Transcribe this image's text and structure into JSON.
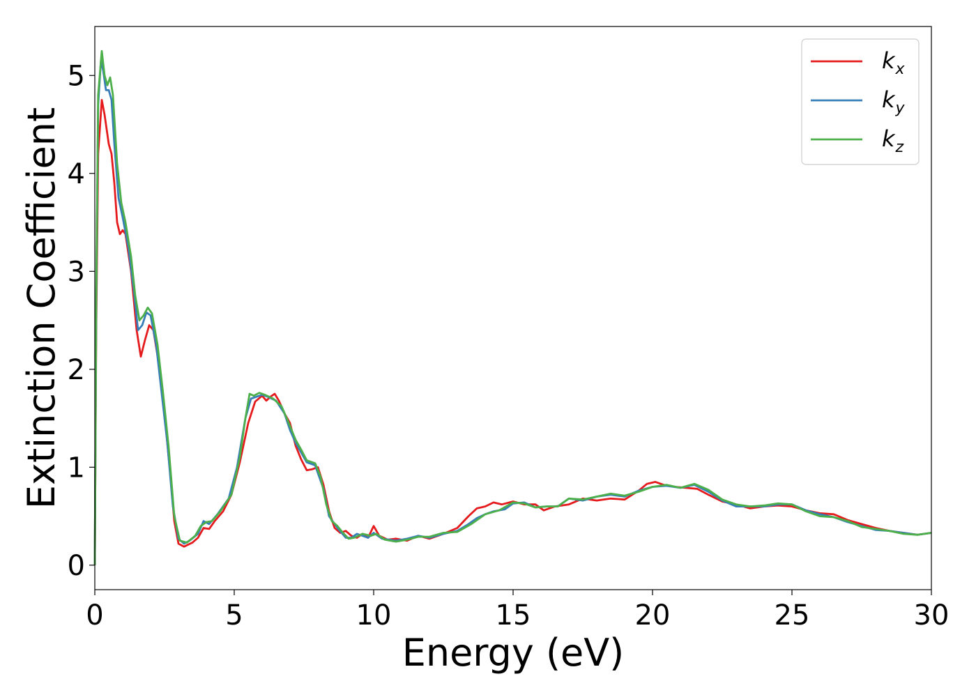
{
  "chart_data": {
    "type": "line",
    "title": "",
    "xlabel": "Energy (eV)",
    "ylabel": "Extinction Coefficient",
    "xlim": [
      0,
      30
    ],
    "ylim": [
      -0.25,
      5.5
    ],
    "xticks": [
      0,
      5,
      10,
      15,
      20,
      25,
      30
    ],
    "yticks": [
      0,
      1,
      2,
      3,
      4,
      5
    ],
    "grid": false,
    "legend_position": "top-right",
    "series": [
      {
        "name": "k_x",
        "label_main": "k",
        "label_sub": "x",
        "color": "#e41a1c",
        "points": [
          [
            0,
            0
          ],
          [
            0.05,
            2.4
          ],
          [
            0.12,
            4.2
          ],
          [
            0.25,
            4.75
          ],
          [
            0.35,
            4.6
          ],
          [
            0.5,
            4.3
          ],
          [
            0.6,
            4.2
          ],
          [
            0.7,
            3.9
          ],
          [
            0.8,
            3.5
          ],
          [
            0.9,
            3.38
          ],
          [
            1.0,
            3.42
          ],
          [
            1.1,
            3.38
          ],
          [
            1.3,
            3.0
          ],
          [
            1.5,
            2.4
          ],
          [
            1.65,
            2.13
          ],
          [
            1.8,
            2.3
          ],
          [
            1.95,
            2.45
          ],
          [
            2.1,
            2.4
          ],
          [
            2.3,
            2.05
          ],
          [
            2.5,
            1.55
          ],
          [
            2.7,
            0.95
          ],
          [
            2.85,
            0.45
          ],
          [
            3.0,
            0.22
          ],
          [
            3.2,
            0.19
          ],
          [
            3.5,
            0.23
          ],
          [
            3.7,
            0.28
          ],
          [
            3.9,
            0.38
          ],
          [
            4.1,
            0.37
          ],
          [
            4.3,
            0.45
          ],
          [
            4.6,
            0.55
          ],
          [
            4.9,
            0.72
          ],
          [
            5.2,
            1.05
          ],
          [
            5.5,
            1.45
          ],
          [
            5.75,
            1.67
          ],
          [
            6.0,
            1.73
          ],
          [
            6.15,
            1.68
          ],
          [
            6.3,
            1.72
          ],
          [
            6.45,
            1.75
          ],
          [
            6.6,
            1.68
          ],
          [
            6.8,
            1.55
          ],
          [
            7.0,
            1.45
          ],
          [
            7.2,
            1.22
          ],
          [
            7.4,
            1.08
          ],
          [
            7.6,
            0.97
          ],
          [
            7.8,
            0.98
          ],
          [
            8.0,
            1.0
          ],
          [
            8.2,
            0.82
          ],
          [
            8.4,
            0.55
          ],
          [
            8.6,
            0.38
          ],
          [
            8.8,
            0.33
          ],
          [
            9.0,
            0.35
          ],
          [
            9.2,
            0.3
          ],
          [
            9.4,
            0.28
          ],
          [
            9.6,
            0.32
          ],
          [
            9.8,
            0.28
          ],
          [
            10.0,
            0.4
          ],
          [
            10.2,
            0.3
          ],
          [
            10.5,
            0.26
          ],
          [
            10.8,
            0.27
          ],
          [
            11.2,
            0.25
          ],
          [
            11.6,
            0.3
          ],
          [
            12.0,
            0.27
          ],
          [
            12.5,
            0.32
          ],
          [
            13.0,
            0.38
          ],
          [
            13.4,
            0.5
          ],
          [
            13.7,
            0.58
          ],
          [
            14.0,
            0.6
          ],
          [
            14.3,
            0.64
          ],
          [
            14.6,
            0.62
          ],
          [
            15.0,
            0.65
          ],
          [
            15.4,
            0.62
          ],
          [
            15.8,
            0.62
          ],
          [
            16.1,
            0.56
          ],
          [
            16.5,
            0.6
          ],
          [
            17.0,
            0.62
          ],
          [
            17.5,
            0.68
          ],
          [
            18.0,
            0.66
          ],
          [
            18.5,
            0.68
          ],
          [
            19.0,
            0.67
          ],
          [
            19.5,
            0.76
          ],
          [
            19.8,
            0.83
          ],
          [
            20.1,
            0.85
          ],
          [
            20.4,
            0.82
          ],
          [
            20.8,
            0.8
          ],
          [
            21.2,
            0.79
          ],
          [
            21.6,
            0.78
          ],
          [
            22.0,
            0.72
          ],
          [
            22.5,
            0.65
          ],
          [
            23.0,
            0.62
          ],
          [
            23.5,
            0.58
          ],
          [
            24.0,
            0.6
          ],
          [
            24.5,
            0.61
          ],
          [
            25.0,
            0.6
          ],
          [
            25.5,
            0.56
          ],
          [
            26.0,
            0.53
          ],
          [
            26.5,
            0.52
          ],
          [
            27.0,
            0.46
          ],
          [
            27.5,
            0.42
          ],
          [
            28.0,
            0.38
          ],
          [
            28.5,
            0.35
          ],
          [
            29.0,
            0.33
          ],
          [
            29.5,
            0.31
          ],
          [
            30.0,
            0.33
          ]
        ]
      },
      {
        "name": "k_y",
        "label_main": "k",
        "label_sub": "y",
        "color": "#377eb8",
        "points": [
          [
            0,
            0
          ],
          [
            0.05,
            2.6
          ],
          [
            0.12,
            4.7
          ],
          [
            0.22,
            5.15
          ],
          [
            0.3,
            5.05
          ],
          [
            0.4,
            4.85
          ],
          [
            0.5,
            4.85
          ],
          [
            0.6,
            4.75
          ],
          [
            0.7,
            4.3
          ],
          [
            0.85,
            3.75
          ],
          [
            1.0,
            3.55
          ],
          [
            1.2,
            3.25
          ],
          [
            1.4,
            2.8
          ],
          [
            1.55,
            2.4
          ],
          [
            1.7,
            2.45
          ],
          [
            1.85,
            2.58
          ],
          [
            2.0,
            2.55
          ],
          [
            2.2,
            2.25
          ],
          [
            2.4,
            1.75
          ],
          [
            2.6,
            1.25
          ],
          [
            2.8,
            0.6
          ],
          [
            3.0,
            0.27
          ],
          [
            3.2,
            0.22
          ],
          [
            3.4,
            0.25
          ],
          [
            3.7,
            0.32
          ],
          [
            3.9,
            0.45
          ],
          [
            4.1,
            0.42
          ],
          [
            4.4,
            0.52
          ],
          [
            4.8,
            0.68
          ],
          [
            5.1,
            1.0
          ],
          [
            5.4,
            1.5
          ],
          [
            5.6,
            1.7
          ],
          [
            5.8,
            1.72
          ],
          [
            6.0,
            1.74
          ],
          [
            6.2,
            1.72
          ],
          [
            6.5,
            1.68
          ],
          [
            6.8,
            1.55
          ],
          [
            7.0,
            1.38
          ],
          [
            7.2,
            1.25
          ],
          [
            7.4,
            1.15
          ],
          [
            7.6,
            1.05
          ],
          [
            7.9,
            1.02
          ],
          [
            8.2,
            0.78
          ],
          [
            8.4,
            0.5
          ],
          [
            8.7,
            0.38
          ],
          [
            9.0,
            0.28
          ],
          [
            9.2,
            0.28
          ],
          [
            9.4,
            0.32
          ],
          [
            9.6,
            0.3
          ],
          [
            9.8,
            0.28
          ],
          [
            10.0,
            0.33
          ],
          [
            10.3,
            0.27
          ],
          [
            10.8,
            0.25
          ],
          [
            11.2,
            0.27
          ],
          [
            11.6,
            0.3
          ],
          [
            12.0,
            0.28
          ],
          [
            12.5,
            0.32
          ],
          [
            13.0,
            0.35
          ],
          [
            13.4,
            0.42
          ],
          [
            13.7,
            0.48
          ],
          [
            14.0,
            0.52
          ],
          [
            14.3,
            0.55
          ],
          [
            14.7,
            0.57
          ],
          [
            15.0,
            0.63
          ],
          [
            15.4,
            0.64
          ],
          [
            15.8,
            0.59
          ],
          [
            16.2,
            0.6
          ],
          [
            16.6,
            0.6
          ],
          [
            17.0,
            0.68
          ],
          [
            17.5,
            0.66
          ],
          [
            18.0,
            0.7
          ],
          [
            18.5,
            0.72
          ],
          [
            19.0,
            0.7
          ],
          [
            19.5,
            0.76
          ],
          [
            20.0,
            0.8
          ],
          [
            20.5,
            0.81
          ],
          [
            21.0,
            0.79
          ],
          [
            21.5,
            0.82
          ],
          [
            22.0,
            0.75
          ],
          [
            22.5,
            0.66
          ],
          [
            23.0,
            0.6
          ],
          [
            23.5,
            0.6
          ],
          [
            24.0,
            0.6
          ],
          [
            24.5,
            0.62
          ],
          [
            25.0,
            0.62
          ],
          [
            25.5,
            0.56
          ],
          [
            26.0,
            0.52
          ],
          [
            26.5,
            0.49
          ],
          [
            27.0,
            0.44
          ],
          [
            27.5,
            0.4
          ],
          [
            28.0,
            0.36
          ],
          [
            28.5,
            0.35
          ],
          [
            29.0,
            0.33
          ],
          [
            29.5,
            0.31
          ],
          [
            30.0,
            0.33
          ]
        ]
      },
      {
        "name": "k_z",
        "label_main": "k",
        "label_sub": "z",
        "color": "#4daf4a",
        "points": [
          [
            0,
            0
          ],
          [
            0.05,
            2.7
          ],
          [
            0.12,
            4.8
          ],
          [
            0.25,
            5.25
          ],
          [
            0.35,
            5.0
          ],
          [
            0.45,
            4.9
          ],
          [
            0.55,
            4.98
          ],
          [
            0.65,
            4.8
          ],
          [
            0.8,
            4.1
          ],
          [
            0.95,
            3.7
          ],
          [
            1.1,
            3.5
          ],
          [
            1.3,
            3.15
          ],
          [
            1.45,
            2.75
          ],
          [
            1.6,
            2.5
          ],
          [
            1.75,
            2.55
          ],
          [
            1.9,
            2.63
          ],
          [
            2.05,
            2.57
          ],
          [
            2.25,
            2.25
          ],
          [
            2.45,
            1.75
          ],
          [
            2.65,
            1.2
          ],
          [
            2.85,
            0.5
          ],
          [
            3.05,
            0.25
          ],
          [
            3.3,
            0.23
          ],
          [
            3.6,
            0.3
          ],
          [
            3.8,
            0.4
          ],
          [
            4.0,
            0.44
          ],
          [
            4.2,
            0.45
          ],
          [
            4.5,
            0.55
          ],
          [
            4.9,
            0.72
          ],
          [
            5.2,
            1.1
          ],
          [
            5.4,
            1.5
          ],
          [
            5.55,
            1.75
          ],
          [
            5.7,
            1.73
          ],
          [
            5.9,
            1.76
          ],
          [
            6.1,
            1.74
          ],
          [
            6.4,
            1.7
          ],
          [
            6.7,
            1.62
          ],
          [
            7.0,
            1.42
          ],
          [
            7.2,
            1.28
          ],
          [
            7.4,
            1.18
          ],
          [
            7.6,
            1.07
          ],
          [
            7.9,
            1.04
          ],
          [
            8.1,
            0.9
          ],
          [
            8.3,
            0.62
          ],
          [
            8.5,
            0.45
          ],
          [
            8.7,
            0.4
          ],
          [
            8.9,
            0.33
          ],
          [
            9.1,
            0.27
          ],
          [
            9.3,
            0.28
          ],
          [
            9.6,
            0.32
          ],
          [
            9.9,
            0.3
          ],
          [
            10.1,
            0.32
          ],
          [
            10.4,
            0.26
          ],
          [
            10.8,
            0.24
          ],
          [
            11.2,
            0.26
          ],
          [
            11.6,
            0.29
          ],
          [
            12.0,
            0.29
          ],
          [
            12.5,
            0.33
          ],
          [
            13.0,
            0.34
          ],
          [
            13.5,
            0.42
          ],
          [
            14.0,
            0.52
          ],
          [
            14.5,
            0.56
          ],
          [
            15.0,
            0.64
          ],
          [
            15.4,
            0.63
          ],
          [
            15.8,
            0.59
          ],
          [
            16.2,
            0.6
          ],
          [
            16.6,
            0.6
          ],
          [
            17.0,
            0.68
          ],
          [
            17.5,
            0.67
          ],
          [
            18.0,
            0.7
          ],
          [
            18.5,
            0.73
          ],
          [
            19.0,
            0.71
          ],
          [
            19.5,
            0.75
          ],
          [
            20.0,
            0.8
          ],
          [
            20.5,
            0.82
          ],
          [
            21.0,
            0.79
          ],
          [
            21.5,
            0.83
          ],
          [
            22.0,
            0.77
          ],
          [
            22.5,
            0.67
          ],
          [
            23.0,
            0.62
          ],
          [
            23.5,
            0.6
          ],
          [
            24.0,
            0.61
          ],
          [
            24.5,
            0.63
          ],
          [
            25.0,
            0.62
          ],
          [
            25.5,
            0.55
          ],
          [
            26.0,
            0.5
          ],
          [
            26.5,
            0.49
          ],
          [
            27.0,
            0.45
          ],
          [
            27.5,
            0.39
          ],
          [
            28.0,
            0.37
          ],
          [
            28.5,
            0.35
          ],
          [
            29.0,
            0.32
          ],
          [
            29.5,
            0.31
          ],
          [
            30.0,
            0.33
          ]
        ]
      }
    ]
  }
}
